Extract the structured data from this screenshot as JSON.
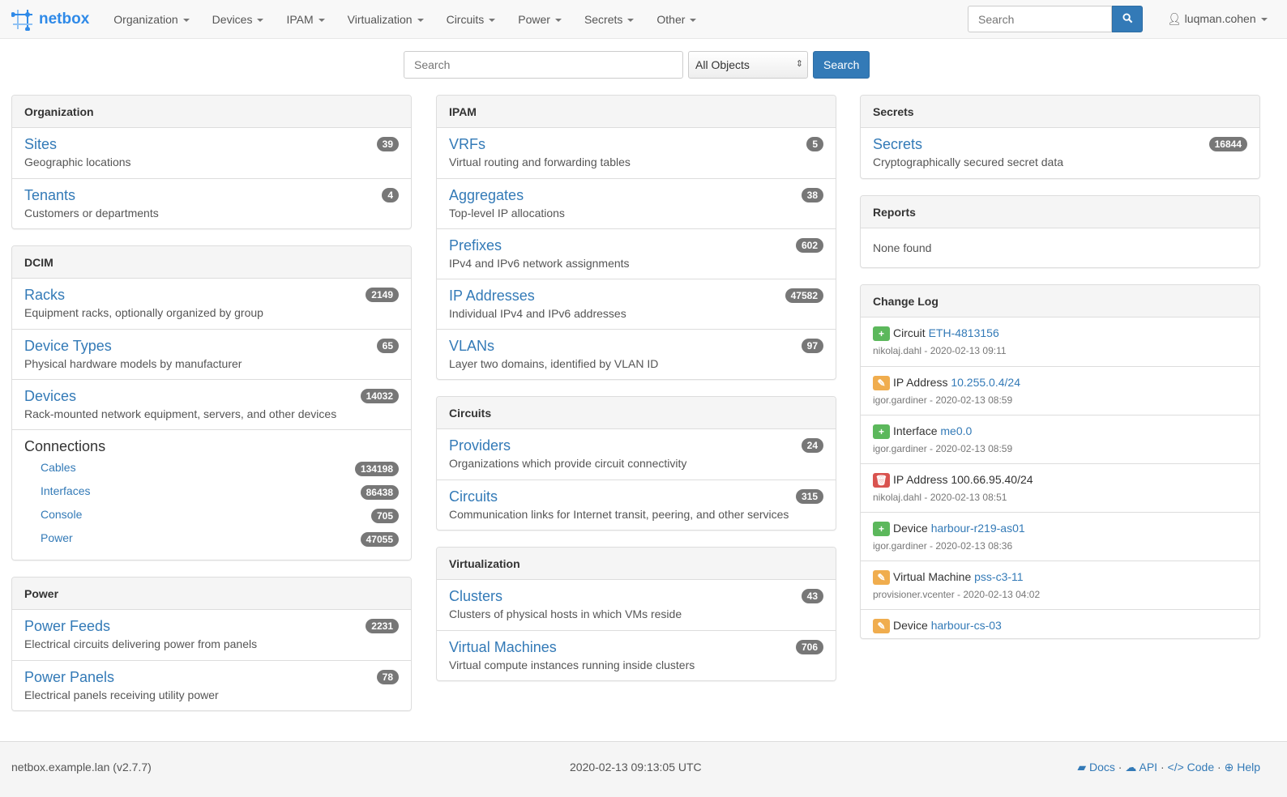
{
  "navbar": {
    "brand": "netbox",
    "menus": [
      "Organization",
      "Devices",
      "IPAM",
      "Virtualization",
      "Circuits",
      "Power",
      "Secrets",
      "Other"
    ],
    "search_placeholder": "Search",
    "user": "luqman.cohen"
  },
  "search": {
    "placeholder": "Search",
    "scope": "All Objects",
    "button": "Search"
  },
  "columns": [
    [
      {
        "title": "Organization",
        "rows": [
          {
            "label": "Sites",
            "desc": "Geographic locations",
            "count": "39"
          },
          {
            "label": "Tenants",
            "desc": "Customers or departments",
            "count": "4"
          }
        ]
      },
      {
        "title": "DCIM",
        "rows": [
          {
            "label": "Racks",
            "desc": "Equipment racks, optionally organized by group",
            "count": "2149"
          },
          {
            "label": "Device Types",
            "desc": "Physical hardware models by manufacturer",
            "count": "65"
          },
          {
            "label": "Devices",
            "desc": "Rack-mounted network equipment, servers, and other devices",
            "count": "14032"
          }
        ],
        "connections": {
          "title": "Connections",
          "items": [
            {
              "label": "Cables",
              "count": "134198"
            },
            {
              "label": "Interfaces",
              "count": "86438"
            },
            {
              "label": "Console",
              "count": "705"
            },
            {
              "label": "Power",
              "count": "47055"
            }
          ]
        }
      },
      {
        "title": "Power",
        "rows": [
          {
            "label": "Power Feeds",
            "desc": "Electrical circuits delivering power from panels",
            "count": "2231"
          },
          {
            "label": "Power Panels",
            "desc": "Electrical panels receiving utility power",
            "count": "78"
          }
        ]
      }
    ],
    [
      {
        "title": "IPAM",
        "rows": [
          {
            "label": "VRFs",
            "desc": "Virtual routing and forwarding tables",
            "count": "5"
          },
          {
            "label": "Aggregates",
            "desc": "Top-level IP allocations",
            "count": "38"
          },
          {
            "label": "Prefixes",
            "desc": "IPv4 and IPv6 network assignments",
            "count": "602"
          },
          {
            "label": "IP Addresses",
            "desc": "Individual IPv4 and IPv6 addresses",
            "count": "47582"
          },
          {
            "label": "VLANs",
            "desc": "Layer two domains, identified by VLAN ID",
            "count": "97"
          }
        ]
      },
      {
        "title": "Circuits",
        "rows": [
          {
            "label": "Providers",
            "desc": "Organizations which provide circuit connectivity",
            "count": "24"
          },
          {
            "label": "Circuits",
            "desc": "Communication links for Internet transit, peering, and other services",
            "count": "315"
          }
        ]
      },
      {
        "title": "Virtualization",
        "rows": [
          {
            "label": "Clusters",
            "desc": "Clusters of physical hosts in which VMs reside",
            "count": "43"
          },
          {
            "label": "Virtual Machines",
            "desc": "Virtual compute instances running inside clusters",
            "count": "706"
          }
        ]
      }
    ],
    [
      {
        "title": "Secrets",
        "rows": [
          {
            "label": "Secrets",
            "desc": "Cryptographically secured secret data",
            "count": "16844"
          }
        ]
      },
      {
        "title": "Reports",
        "none": "None found"
      },
      {
        "title": "Change Log",
        "changes": [
          {
            "action": "create",
            "type": "Circuit",
            "object": "ETH-4813156",
            "meta": "nikolaj.dahl - 2020-02-13 09:11"
          },
          {
            "action": "update",
            "type": "IP Address",
            "object": "10.255.0.4/24",
            "meta": "igor.gardiner - 2020-02-13 08:59"
          },
          {
            "action": "create",
            "type": "Interface",
            "object": "me0.0",
            "meta": "igor.gardiner - 2020-02-13 08:59"
          },
          {
            "action": "delete",
            "type": "IP Address",
            "plain": "100.66.95.40/24",
            "meta": "nikolaj.dahl - 2020-02-13 08:51"
          },
          {
            "action": "create",
            "type": "Device",
            "object": "harbour-r219-as01",
            "meta": "igor.gardiner - 2020-02-13 08:36"
          },
          {
            "action": "update",
            "type": "Virtual Machine",
            "object": "pss-c3-11",
            "meta": "provisioner.vcenter - 2020-02-13 04:02"
          },
          {
            "action": "update",
            "type": "Device",
            "object": "harbour-cs-03",
            "meta": ""
          }
        ]
      }
    ]
  ],
  "colors": {
    "create": "#5cb85c",
    "update": "#f0ad4e",
    "delete": "#d9534f",
    "link": "#337ab7"
  },
  "footer": {
    "host": "netbox.example.lan (v2.7.7)",
    "time": "2020-02-13 09:13:05 UTC",
    "links": [
      "Docs",
      "API",
      "Code",
      "Help"
    ]
  }
}
